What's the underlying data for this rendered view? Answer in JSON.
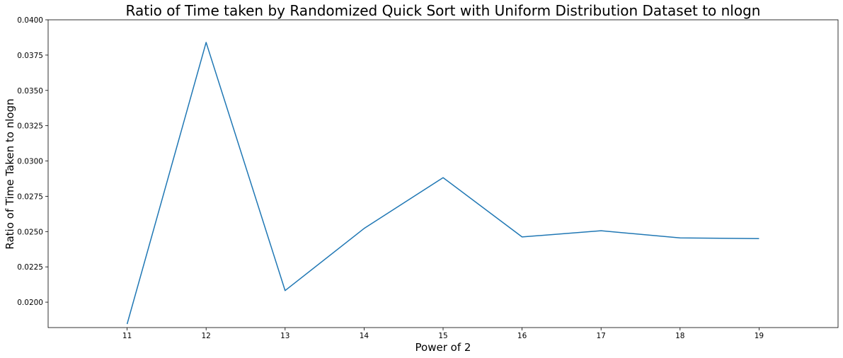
{
  "chart_data": {
    "type": "line",
    "title": "Ratio of Time taken by Randomized Quick Sort with Uniform Distribution Dataset to nlogn",
    "xlabel": "Power of 2",
    "ylabel": "Ratio of Time Taken to nlogn",
    "x": [
      11,
      12,
      13,
      14,
      15,
      16,
      17,
      18,
      19
    ],
    "series": [
      {
        "values": [
          0.01845,
          0.0384,
          0.02082,
          0.02522,
          0.02882,
          0.02462,
          0.02506,
          0.02455,
          0.0245
        ],
        "color": "#1f77b4"
      }
    ],
    "xlim": [
      10,
      20
    ],
    "ylim": [
      0.0182,
      0.04
    ],
    "xticks": [
      11,
      12,
      13,
      14,
      15,
      16,
      17,
      18,
      19
    ],
    "yticks": [
      0.02,
      0.0225,
      0.025,
      0.0275,
      0.03,
      0.0325,
      0.035,
      0.0375,
      0.04
    ],
    "ytick_labels": [
      "0.0200",
      "0.0225",
      "0.0250",
      "0.0275",
      "0.0300",
      "0.0325",
      "0.0350",
      "0.0375",
      "0.0400"
    ],
    "grid": false,
    "legend": "none"
  }
}
